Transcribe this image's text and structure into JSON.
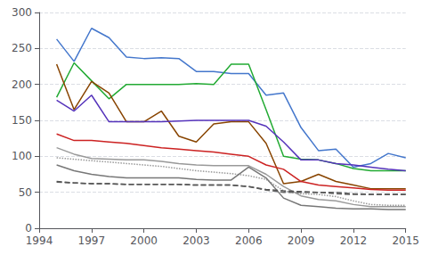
{
  "chart_data": {
    "type": "line",
    "x": [
      1995,
      1996,
      1997,
      1998,
      1999,
      2000,
      2001,
      2002,
      2003,
      2004,
      2005,
      2006,
      2007,
      2008,
      2009,
      2010,
      2011,
      2012,
      2013,
      2014,
      2015
    ],
    "series": [
      {
        "color": "#4477cc",
        "line_style": "solid",
        "values": [
          263,
          232,
          278,
          265,
          238,
          236,
          237,
          236,
          218,
          218,
          215,
          215,
          185,
          188,
          140,
          108,
          110,
          85,
          90,
          104,
          98
        ]
      },
      {
        "color": "#22aa33",
        "line_style": "solid",
        "values": [
          182,
          230,
          205,
          180,
          200,
          200,
          200,
          200,
          201,
          200,
          228,
          228,
          165,
          100,
          96,
          95,
          90,
          83,
          80,
          80,
          80
        ]
      },
      {
        "color": "#884400",
        "line_style": "solid",
        "values": [
          228,
          165,
          204,
          188,
          148,
          148,
          163,
          128,
          120,
          145,
          148,
          148,
          118,
          62,
          65,
          75,
          65,
          60,
          55,
          55,
          55
        ]
      },
      {
        "color": "#5533bb",
        "line_style": "solid",
        "values": [
          178,
          163,
          185,
          148,
          148,
          148,
          148,
          149,
          150,
          150,
          150,
          150,
          142,
          120,
          95,
          95,
          90,
          88,
          85,
          82,
          80
        ]
      },
      {
        "color": "#cc2222",
        "line_style": "solid",
        "values": [
          131,
          122,
          122,
          120,
          118,
          115,
          112,
          110,
          108,
          106,
          103,
          100,
          88,
          82,
          65,
          60,
          58,
          56,
          54,
          53,
          53
        ]
      },
      {
        "color": "#999999",
        "line_style": "solid",
        "values": [
          112,
          103,
          97,
          96,
          95,
          95,
          93,
          90,
          88,
          87,
          87,
          87,
          75,
          58,
          45,
          40,
          38,
          33,
          30,
          30,
          30
        ]
      },
      {
        "color": "#999999",
        "line_style": "dotted",
        "values": [
          98,
          96,
          94,
          92,
          90,
          88,
          86,
          83,
          80,
          78,
          76,
          73,
          68,
          52,
          48,
          47,
          44,
          38,
          33,
          32,
          32
        ]
      },
      {
        "color": "#777777",
        "line_style": "solid",
        "values": [
          88,
          80,
          75,
          72,
          70,
          70,
          70,
          70,
          68,
          67,
          67,
          85,
          70,
          42,
          32,
          30,
          28,
          27,
          27,
          26,
          26
        ]
      },
      {
        "color": "#666666",
        "line_style": "dashed",
        "values": [
          64,
          63,
          62,
          62,
          61,
          61,
          61,
          61,
          60,
          60,
          60,
          58,
          53,
          50,
          50,
          50,
          50,
          48,
          47,
          47,
          47
        ]
      },
      {
        "color": "#555555",
        "line_style": "dashed",
        "values": [
          65,
          63,
          62,
          62,
          61,
          61,
          61,
          61,
          60,
          60,
          60,
          58,
          54,
          52,
          51,
          50,
          48,
          47,
          47,
          47,
          47
        ]
      }
    ],
    "xlim": [
      1994,
      2015
    ],
    "xticks": [
      1994,
      1997,
      2000,
      2003,
      2006,
      2009,
      2012,
      2015
    ],
    "ylim": [
      0,
      300
    ],
    "yticks": [
      0,
      50,
      100,
      150,
      200,
      250,
      300
    ],
    "grid": true
  }
}
